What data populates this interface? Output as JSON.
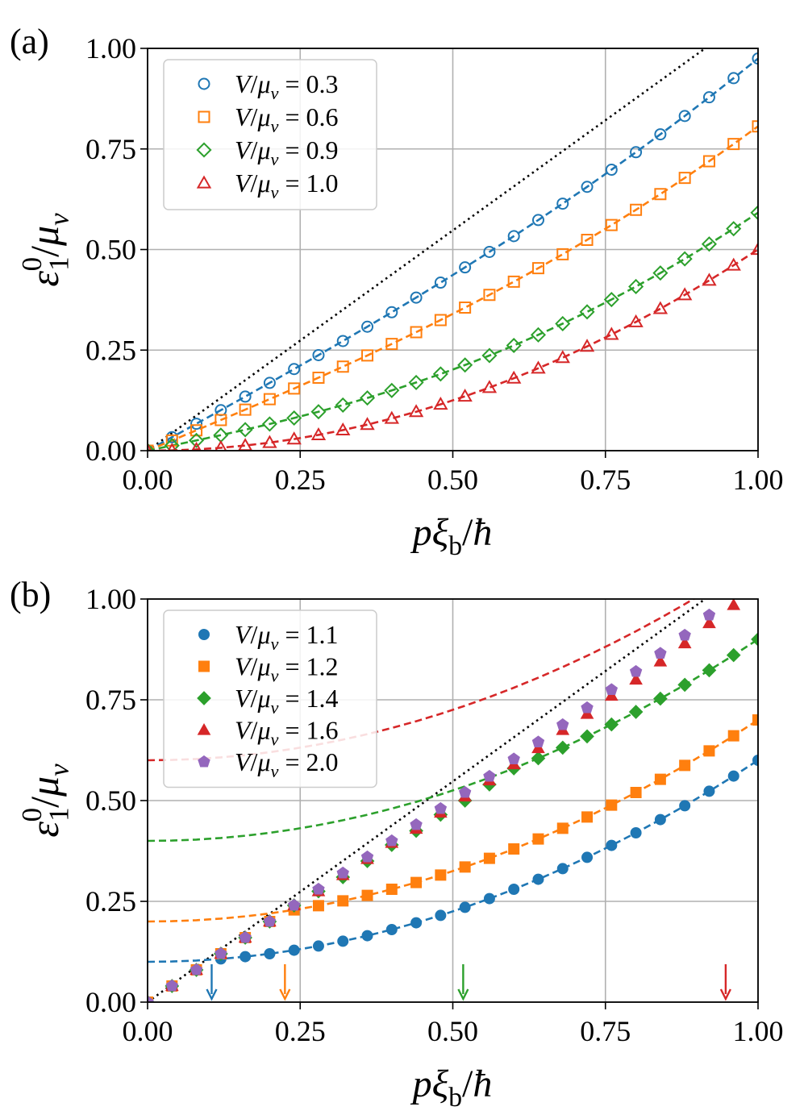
{
  "chart_data": [
    {
      "type": "line",
      "panel_label": "(a)",
      "xlabel": "pξb/ħ",
      "ylabel": "ε10/μv",
      "x": [
        0,
        0.04,
        0.08,
        0.12,
        0.16,
        0.2,
        0.24,
        0.28,
        0.32,
        0.36,
        0.4,
        0.44,
        0.48,
        0.52,
        0.56,
        0.6,
        0.64,
        0.68,
        0.72,
        0.76,
        0.8,
        0.84,
        0.88,
        0.92,
        0.96,
        1
      ],
      "xlim": [
        0,
        1
      ],
      "ylim": [
        0,
        1
      ],
      "xticks": [
        {
          "value": 0,
          "label": "0.00"
        },
        {
          "value": 0.25,
          "label": "0.25"
        },
        {
          "value": 0.5,
          "label": "0.50"
        },
        {
          "value": 0.75,
          "label": "0.75"
        },
        {
          "value": 1,
          "label": "1.00"
        }
      ],
      "yticks": [
        {
          "value": 0,
          "label": "0.00"
        },
        {
          "value": 0.25,
          "label": "0.25"
        },
        {
          "value": 0.5,
          "label": "0.50"
        },
        {
          "value": 0.75,
          "label": "0.75"
        },
        {
          "value": 1,
          "label": "1.00"
        }
      ],
      "grid": true,
      "legend": "upper left",
      "reference_line": {
        "x": [
          0,
          1
        ],
        "values": [
          0,
          1.095
        ],
        "color": "#000000"
      },
      "series": [
        {
          "name": "V/μv = 0.3",
          "color": "#1f77b4",
          "marker": "circle",
          "filled": false,
          "line": "dashed",
          "values": [
            0,
            0.0335,
            0.067,
            0.1007,
            0.1345,
            0.1685,
            0.2029,
            0.2375,
            0.2726,
            0.3081,
            0.3441,
            0.3806,
            0.4178,
            0.4556,
            0.4941,
            0.5333,
            0.5733,
            0.6141,
            0.6558,
            0.6984,
            0.7419,
            0.7864,
            0.8319,
            0.8784,
            0.926,
            0.9747
          ]
        },
        {
          "name": "V/μv = 0.6",
          "color": "#ff7f0e",
          "marker": "square",
          "filled": false,
          "line": "dashed",
          "values": [
            0,
            0.0253,
            0.0507,
            0.0762,
            0.102,
            0.1281,
            0.1545,
            0.1814,
            0.2088,
            0.2367,
            0.2653,
            0.2946,
            0.3247,
            0.3556,
            0.3873,
            0.42,
            0.4536,
            0.4883,
            0.524,
            0.5608,
            0.5987,
            0.6377,
            0.678,
            0.7195,
            0.7622,
            0.8062
          ]
        },
        {
          "name": "V/μv = 0.9",
          "color": "#2ca02c",
          "marker": "diamond",
          "filled": false,
          "line": "dashed",
          "values": [
            0,
            0.0127,
            0.0255,
            0.0386,
            0.0522,
            0.0663,
            0.0812,
            0.0968,
            0.1134,
            0.131,
            0.1497,
            0.1695,
            0.1906,
            0.2129,
            0.2365,
            0.2615,
            0.2879,
            0.3157,
            0.345,
            0.3757,
            0.4079,
            0.4416,
            0.4768,
            0.5136,
            0.5518,
            0.5916
          ]
        },
        {
          "name": "V/μv = 1.0",
          "color": "#d62728",
          "marker": "triangle",
          "filled": false,
          "line": "dashed",
          "values": [
            0,
            0.0008,
            0.0032,
            0.0072,
            0.0128,
            0.02,
            0.0288,
            0.0392,
            0.0512,
            0.0648,
            0.08,
            0.0968,
            0.1152,
            0.1352,
            0.1568,
            0.18,
            0.2048,
            0.2312,
            0.2592,
            0.2888,
            0.32,
            0.3528,
            0.3872,
            0.4232,
            0.4608,
            0.5
          ]
        }
      ]
    },
    {
      "type": "line",
      "panel_label": "(b)",
      "xlabel": "pξb/ħ",
      "ylabel": "ε10/μv",
      "x": [
        0,
        0.04,
        0.08,
        0.12,
        0.16,
        0.2,
        0.24,
        0.28,
        0.32,
        0.36,
        0.4,
        0.44,
        0.48,
        0.52,
        0.56,
        0.6,
        0.64,
        0.68,
        0.72,
        0.76,
        0.8,
        0.84,
        0.88,
        0.92,
        0.96,
        1
      ],
      "xlim": [
        0,
        1
      ],
      "ylim": [
        0,
        1
      ],
      "xticks": [
        {
          "value": 0,
          "label": "0.00"
        },
        {
          "value": 0.25,
          "label": "0.25"
        },
        {
          "value": 0.5,
          "label": "0.50"
        },
        {
          "value": 0.75,
          "label": "0.75"
        },
        {
          "value": 1,
          "label": "1.00"
        }
      ],
      "yticks": [
        {
          "value": 0,
          "label": "0.00"
        },
        {
          "value": 0.25,
          "label": "0.25"
        },
        {
          "value": 0.5,
          "label": "0.50"
        },
        {
          "value": 0.75,
          "label": "0.75"
        },
        {
          "value": 1,
          "label": "1.00"
        }
      ],
      "grid": true,
      "legend": "upper left",
      "reference_line": {
        "x": [
          0,
          1
        ],
        "values": [
          0,
          1.095
        ],
        "color": "#000000"
      },
      "series": [
        {
          "name": "V/μv = 1.1",
          "color": "#1f77b4",
          "marker": "circle",
          "filled": true,
          "line": "none",
          "values": [
            0,
            0.04,
            0.08,
            0.1072,
            0.1128,
            0.12,
            0.1288,
            0.1392,
            0.1512,
            0.1648,
            0.18,
            0.1968,
            0.2152,
            0.2352,
            0.2568,
            0.28,
            0.3048,
            0.3312,
            0.3592,
            0.3888,
            0.42,
            0.4528,
            0.4872,
            0.5232,
            0.5608,
            0.6
          ]
        },
        {
          "name": "V/μv = 1.2",
          "color": "#ff7f0e",
          "marker": "square",
          "filled": true,
          "line": "none",
          "values": [
            0,
            0.04,
            0.08,
            0.12,
            0.16,
            0.2,
            0.2288,
            0.2392,
            0.2512,
            0.2648,
            0.28,
            0.2968,
            0.3152,
            0.3352,
            0.3568,
            0.38,
            0.4048,
            0.4312,
            0.4592,
            0.4888,
            0.52,
            0.5528,
            0.5872,
            0.6232,
            0.6608,
            0.7
          ]
        },
        {
          "name": "V/μv = 1.4",
          "color": "#2ca02c",
          "marker": "diamond",
          "filled": true,
          "line": "none",
          "values": [
            0,
            0.04,
            0.08,
            0.12,
            0.16,
            0.2,
            0.24,
            0.275,
            0.31,
            0.35,
            0.39,
            0.425,
            0.465,
            0.5,
            0.54,
            0.58,
            0.6048,
            0.6312,
            0.6592,
            0.6888,
            0.72,
            0.7528,
            0.7872,
            0.8232,
            0.8608,
            0.9
          ]
        },
        {
          "name": "V/μv = 1.6",
          "color": "#d62728",
          "marker": "triangle",
          "filled": true,
          "line": "none",
          "values": [
            0,
            0.04,
            0.08,
            0.12,
            0.16,
            0.2,
            0.24,
            0.275,
            0.315,
            0.355,
            0.395,
            0.43,
            0.47,
            0.51,
            0.55,
            0.59,
            0.63,
            0.675,
            0.715,
            0.76,
            0.8,
            0.845,
            0.89,
            0.94,
            0.985,
            null
          ]
        },
        {
          "name": "V/μv = 2.0",
          "color": "#9467bd",
          "marker": "pentagon",
          "filled": true,
          "line": "none",
          "values": [
            0,
            0.04,
            0.08,
            0.12,
            0.16,
            0.2,
            0.24,
            0.28,
            0.32,
            0.36,
            0.4,
            0.44,
            0.48,
            0.52,
            0.56,
            0.603,
            0.645,
            0.688,
            0.73,
            0.775,
            0.82,
            0.865,
            0.91,
            0.96,
            null,
            null
          ]
        }
      ],
      "curves": [
        {
          "color": "#1f77b4",
          "values": [
            0.1,
            0.1008,
            0.1032,
            0.1072,
            0.1128,
            0.12,
            0.1288,
            0.1392,
            0.1512,
            0.1648,
            0.18,
            0.1968,
            0.2152,
            0.2352,
            0.2568,
            0.28,
            0.3048,
            0.3312,
            0.3592,
            0.3888,
            0.42,
            0.4528,
            0.4872,
            0.5232,
            0.5608,
            0.6
          ]
        },
        {
          "color": "#ff7f0e",
          "values": [
            0.2,
            0.2008,
            0.2032,
            0.2072,
            0.2128,
            0.22,
            0.2288,
            0.2392,
            0.2512,
            0.2648,
            0.28,
            0.2968,
            0.3152,
            0.3352,
            0.3568,
            0.38,
            0.4048,
            0.4312,
            0.4592,
            0.4888,
            0.52,
            0.5528,
            0.5872,
            0.6232,
            0.6608,
            0.7
          ]
        },
        {
          "color": "#2ca02c",
          "values": [
            0.4,
            0.4008,
            0.4032,
            0.4072,
            0.4128,
            0.42,
            0.4288,
            0.4392,
            0.4512,
            0.4648,
            0.48,
            0.4968,
            0.5152,
            0.5352,
            0.5568,
            0.58,
            0.6048,
            0.6312,
            0.6592,
            0.6888,
            0.72,
            0.7528,
            0.7872,
            0.8232,
            0.8608,
            0.9
          ]
        },
        {
          "color": "#d62728",
          "values": [
            0.6,
            0.6008,
            0.6032,
            0.6072,
            0.6128,
            0.62,
            0.6288,
            0.6392,
            0.6512,
            0.6648,
            0.68,
            0.6968,
            0.7152,
            0.7352,
            0.7568,
            0.78,
            0.8048,
            0.8312,
            0.8592,
            0.8888,
            0.92,
            0.9528,
            0.9872,
            1.0232,
            1.0608,
            1.1
          ]
        }
      ],
      "arrows": [
        {
          "x": 0.105,
          "color": "#1f77b4"
        },
        {
          "x": 0.225,
          "color": "#ff7f0e"
        },
        {
          "x": 0.517,
          "color": "#2ca02c"
        },
        {
          "x": 0.947,
          "color": "#d62728"
        }
      ]
    }
  ]
}
